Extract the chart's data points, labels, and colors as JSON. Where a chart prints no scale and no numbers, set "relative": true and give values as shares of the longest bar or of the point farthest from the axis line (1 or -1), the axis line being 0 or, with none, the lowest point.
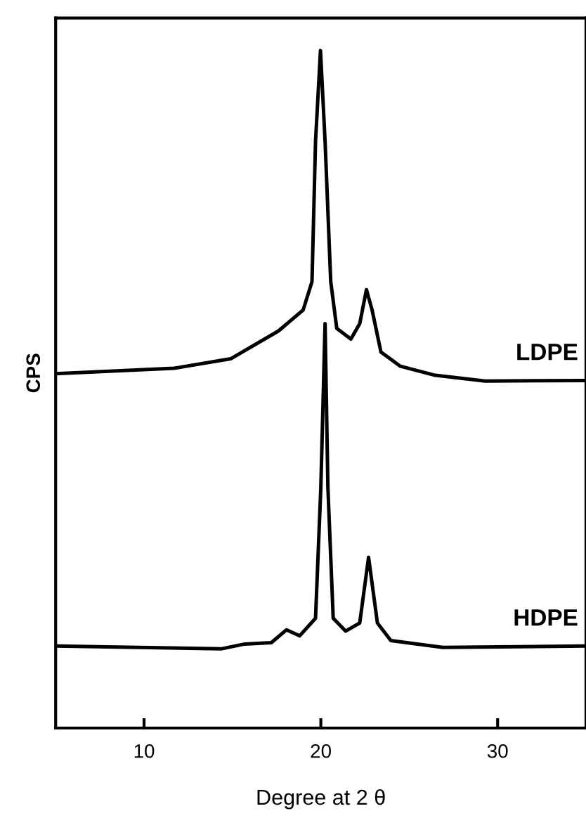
{
  "chart_data": {
    "type": "line",
    "relative": true,
    "xlabel": "Degree at 2 θ",
    "ylabel": "CPS",
    "xlim": [
      5,
      35
    ],
    "xticks": [
      10,
      20,
      30
    ],
    "grid": false,
    "legend": false,
    "marker": "none",
    "line_style": "solid",
    "series": [
      {
        "name": "LDPE",
        "color": "#000000",
        "x": [
          5,
          11.7,
          14.9,
          17.6,
          19.0,
          19.5,
          19.7,
          19.98,
          20.24,
          20.56,
          20.9,
          21.7,
          22.2,
          22.58,
          22.9,
          23.4,
          24.5,
          26.4,
          29.3,
          35
        ],
        "values": [
          0.523,
          0.531,
          0.545,
          0.586,
          0.617,
          0.659,
          0.866,
          1.0,
          0.866,
          0.659,
          0.59,
          0.574,
          0.597,
          0.647,
          0.617,
          0.555,
          0.534,
          0.521,
          0.512,
          0.513
        ]
      },
      {
        "name": "HDPE",
        "color": "#000000",
        "x": [
          5,
          14.4,
          15.7,
          17.2,
          18.06,
          18.8,
          19.7,
          20.0,
          20.24,
          20.4,
          20.7,
          21.4,
          22.2,
          22.7,
          23.2,
          23.96,
          26.9,
          35
        ],
        "values": [
          0.121,
          0.117,
          0.124,
          0.126,
          0.145,
          0.136,
          0.162,
          0.355,
          0.597,
          0.355,
          0.162,
          0.143,
          0.155,
          0.252,
          0.155,
          0.129,
          0.119,
          0.121
        ]
      }
    ]
  }
}
